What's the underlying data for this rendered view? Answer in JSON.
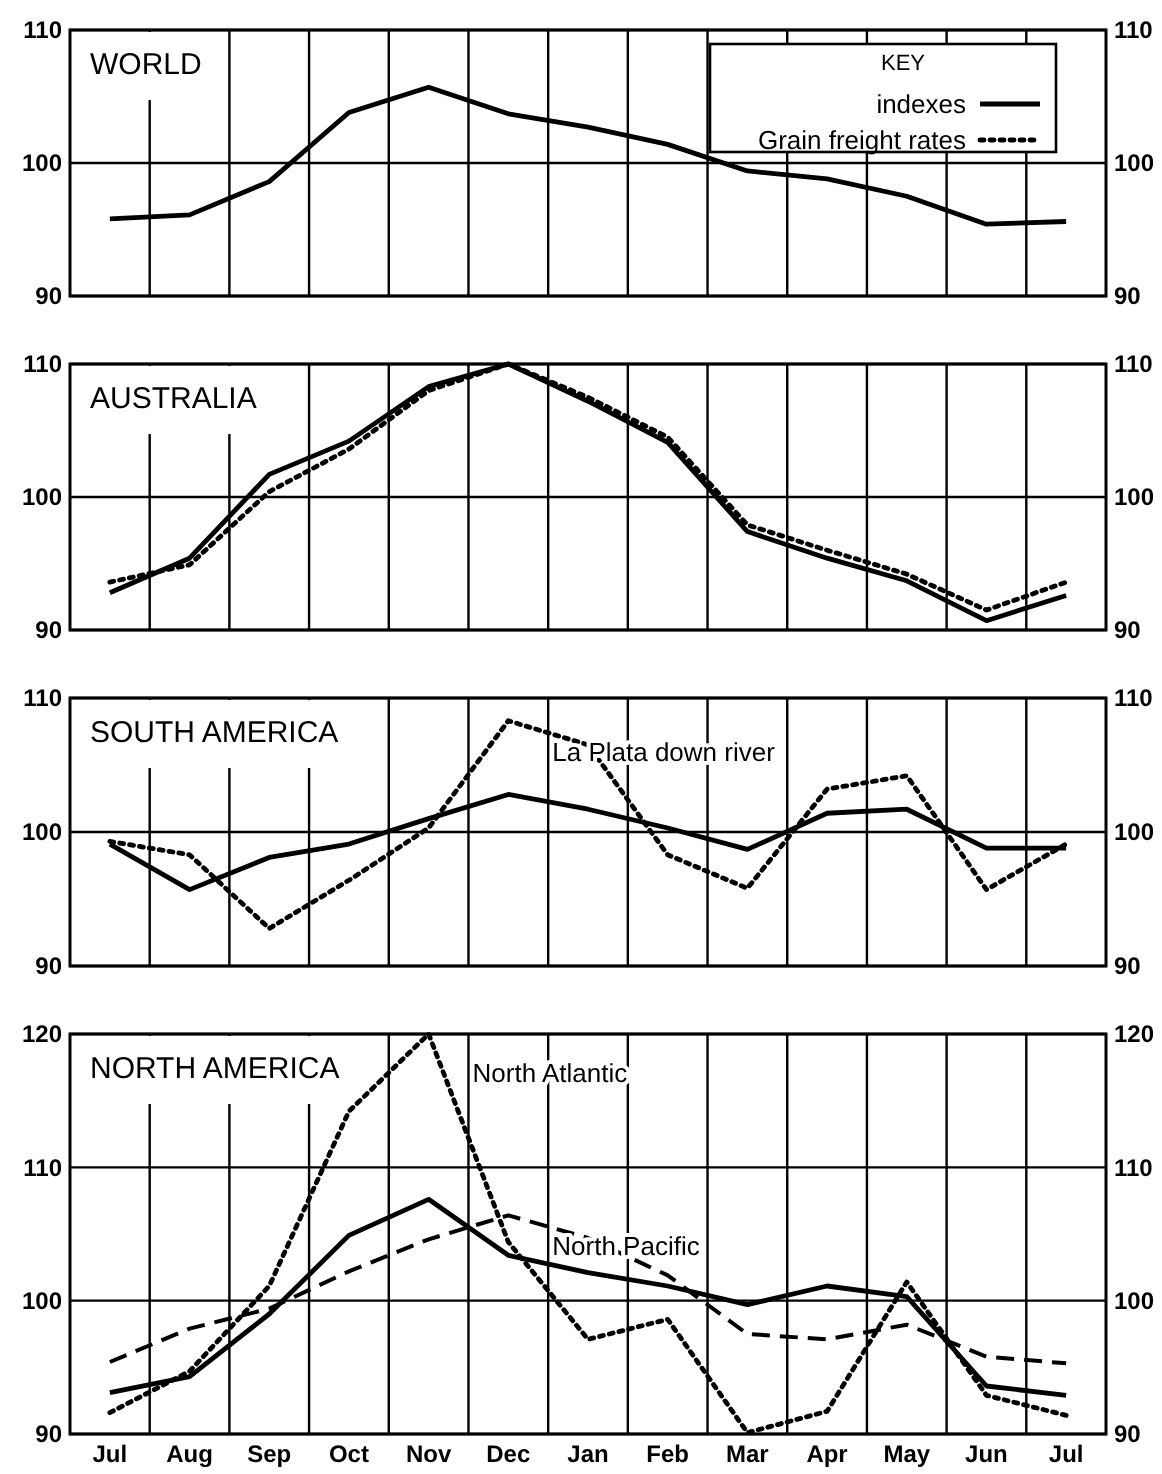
{
  "chart_data": [
    {
      "type": "line",
      "title": "WORLD",
      "categories": [
        null,
        null,
        null,
        null,
        null,
        null,
        null,
        null,
        null,
        null,
        null,
        null,
        null
      ],
      "ylim": [
        90,
        110
      ],
      "yticks": [
        90,
        100,
        110
      ],
      "y2lim": [
        90,
        110
      ],
      "y2ticks": [
        90,
        100,
        110
      ],
      "grid": true,
      "tick_labels": "y",
      "legend": "top right",
      "legend_title": "KEY",
      "series": [
        {
          "name": "indexes",
          "color": "#000000",
          "line_style": "solid",
          "values": [
            95.8,
            96.1,
            98.6,
            103.8,
            105.7,
            103.7,
            102.7,
            101.4,
            99.4,
            98.8,
            97.5,
            95.4,
            95.6
          ]
        },
        {
          "name": "Grain freight rates",
          "color": "#000000",
          "line_style": "dotted",
          "values": [
            null,
            null,
            null,
            null,
            null,
            null,
            null,
            null,
            null,
            null,
            null,
            null,
            null
          ]
        }
      ]
    },
    {
      "type": "line",
      "title": "AUSTRALIA",
      "categories": [
        null,
        null,
        null,
        null,
        null,
        null,
        null,
        null,
        null,
        null,
        null,
        null,
        null
      ],
      "ylim": [
        90,
        110
      ],
      "yticks": [
        90,
        100,
        110
      ],
      "y2lim": [
        90,
        110
      ],
      "y2ticks": [
        90,
        100,
        110
      ],
      "grid": true,
      "tick_labels": "y",
      "legend": false,
      "series": [
        {
          "color": "#000000",
          "line_style": "solid",
          "values": [
            92.8,
            95.4,
            101.7,
            104.2,
            108.3,
            110,
            107.2,
            104.1,
            97.4,
            95.4,
            93.7,
            90.7,
            92.6
          ]
        },
        {
          "color": "#000000",
          "line_style": "dotted",
          "values": [
            93.6,
            94.9,
            100.4,
            103.6,
            108,
            110,
            107.5,
            104.5,
            97.9,
            96,
            94.2,
            91.5,
            93.6
          ]
        }
      ]
    },
    {
      "type": "line",
      "title": "SOUTH AMERICA",
      "categories": [
        null,
        null,
        null,
        null,
        null,
        null,
        null,
        null,
        null,
        null,
        null,
        null,
        null
      ],
      "ylim": [
        90,
        110
      ],
      "yticks": [
        90,
        100,
        110
      ],
      "y2lim": [
        90,
        110
      ],
      "y2ticks": [
        90,
        100,
        110
      ],
      "grid": true,
      "tick_labels": "y",
      "legend": false,
      "series": [
        {
          "color": "#000000",
          "line_style": "solid",
          "values": [
            99.1,
            95.7,
            98.1,
            99.1,
            101,
            102.8,
            101.7,
            100.3,
            98.7,
            101.4,
            101.7,
            98.8,
            98.8
          ]
        },
        {
          "name": "La Plata down river",
          "color": "#000000",
          "line_style": "dotted",
          "values": [
            99.3,
            98.3,
            92.8,
            96.4,
            100.3,
            108.3,
            106.5,
            98.3,
            95.8,
            103.2,
            104.2,
            95.7,
            99.1
          ]
        }
      ]
    },
    {
      "type": "line",
      "title": "NORTH AMERICA",
      "categories": [
        "Jul",
        "Aug",
        "Sep",
        "Oct",
        "Nov",
        "Dec",
        "Jan",
        "Feb",
        "Mar",
        "Apr",
        "May",
        "Jun",
        "Jul"
      ],
      "ylim": [
        90,
        120
      ],
      "yticks": [
        90,
        100,
        110,
        120
      ],
      "y2lim": [
        90,
        120
      ],
      "y2ticks": [
        90,
        100,
        110,
        120
      ],
      "grid": true,
      "legend": false,
      "series": [
        {
          "color": "#000000",
          "line_style": "solid",
          "values": [
            93.1,
            94.3,
            99,
            104.9,
            107.6,
            103.4,
            102.1,
            101.1,
            99.7,
            101.1,
            100.3,
            93.6,
            92.9
          ]
        },
        {
          "name": "North Pacific",
          "color": "#000000",
          "line_style": "dashed",
          "values": [
            95.4,
            97.9,
            99.4,
            102.2,
            104.6,
            106.4,
            104.7,
            101.9,
            97.5,
            97.1,
            98.2,
            95.8,
            95.3
          ]
        },
        {
          "name": "North Atlantic",
          "color": "#000000",
          "line_style": "dotted",
          "values": [
            91.6,
            94.7,
            101.1,
            114.2,
            120,
            104.4,
            97.1,
            98.6,
            90.1,
            91.7,
            101.4,
            92.9,
            91.4
          ]
        }
      ]
    }
  ]
}
